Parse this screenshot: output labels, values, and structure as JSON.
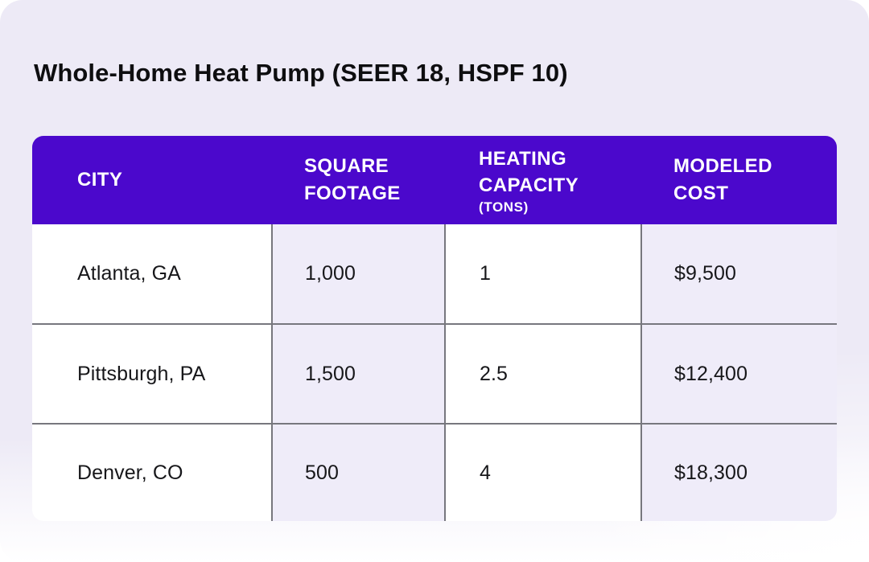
{
  "title": "Whole-Home Heat Pump (SEER 18, HSPF 10)",
  "chart_data": {
    "type": "table",
    "title": "Whole-Home Heat Pump (SEER 18, HSPF 10)",
    "columns": [
      {
        "label": "CITY",
        "sublabel": ""
      },
      {
        "label": "SQUARE FOOTAGE",
        "sublabel": ""
      },
      {
        "label": "HEATING CAPACITY",
        "sublabel": "(TONS)"
      },
      {
        "label": "MODELED COST",
        "sublabel": ""
      }
    ],
    "rows": [
      {
        "city": "Atlanta, GA",
        "square_footage": "1,000",
        "heating_capacity_tons": "1",
        "modeled_cost": "$9,500"
      },
      {
        "city": "Pittsburgh, PA",
        "square_footage": "1,500",
        "heating_capacity_tons": "2.5",
        "modeled_cost": "$12,400"
      },
      {
        "city": "Denver, CO",
        "square_footage": "500",
        "heating_capacity_tons": "4",
        "modeled_cost": "$18,300"
      }
    ]
  },
  "colors": {
    "header_background": "#4B08CC",
    "header_text": "#FFFFFF",
    "card_background": "#EDEAF6",
    "alt_column_background": "#EFECF9",
    "grid_line": "#77777E",
    "title_text": "#0E0E10",
    "cell_text": "#17171A"
  }
}
